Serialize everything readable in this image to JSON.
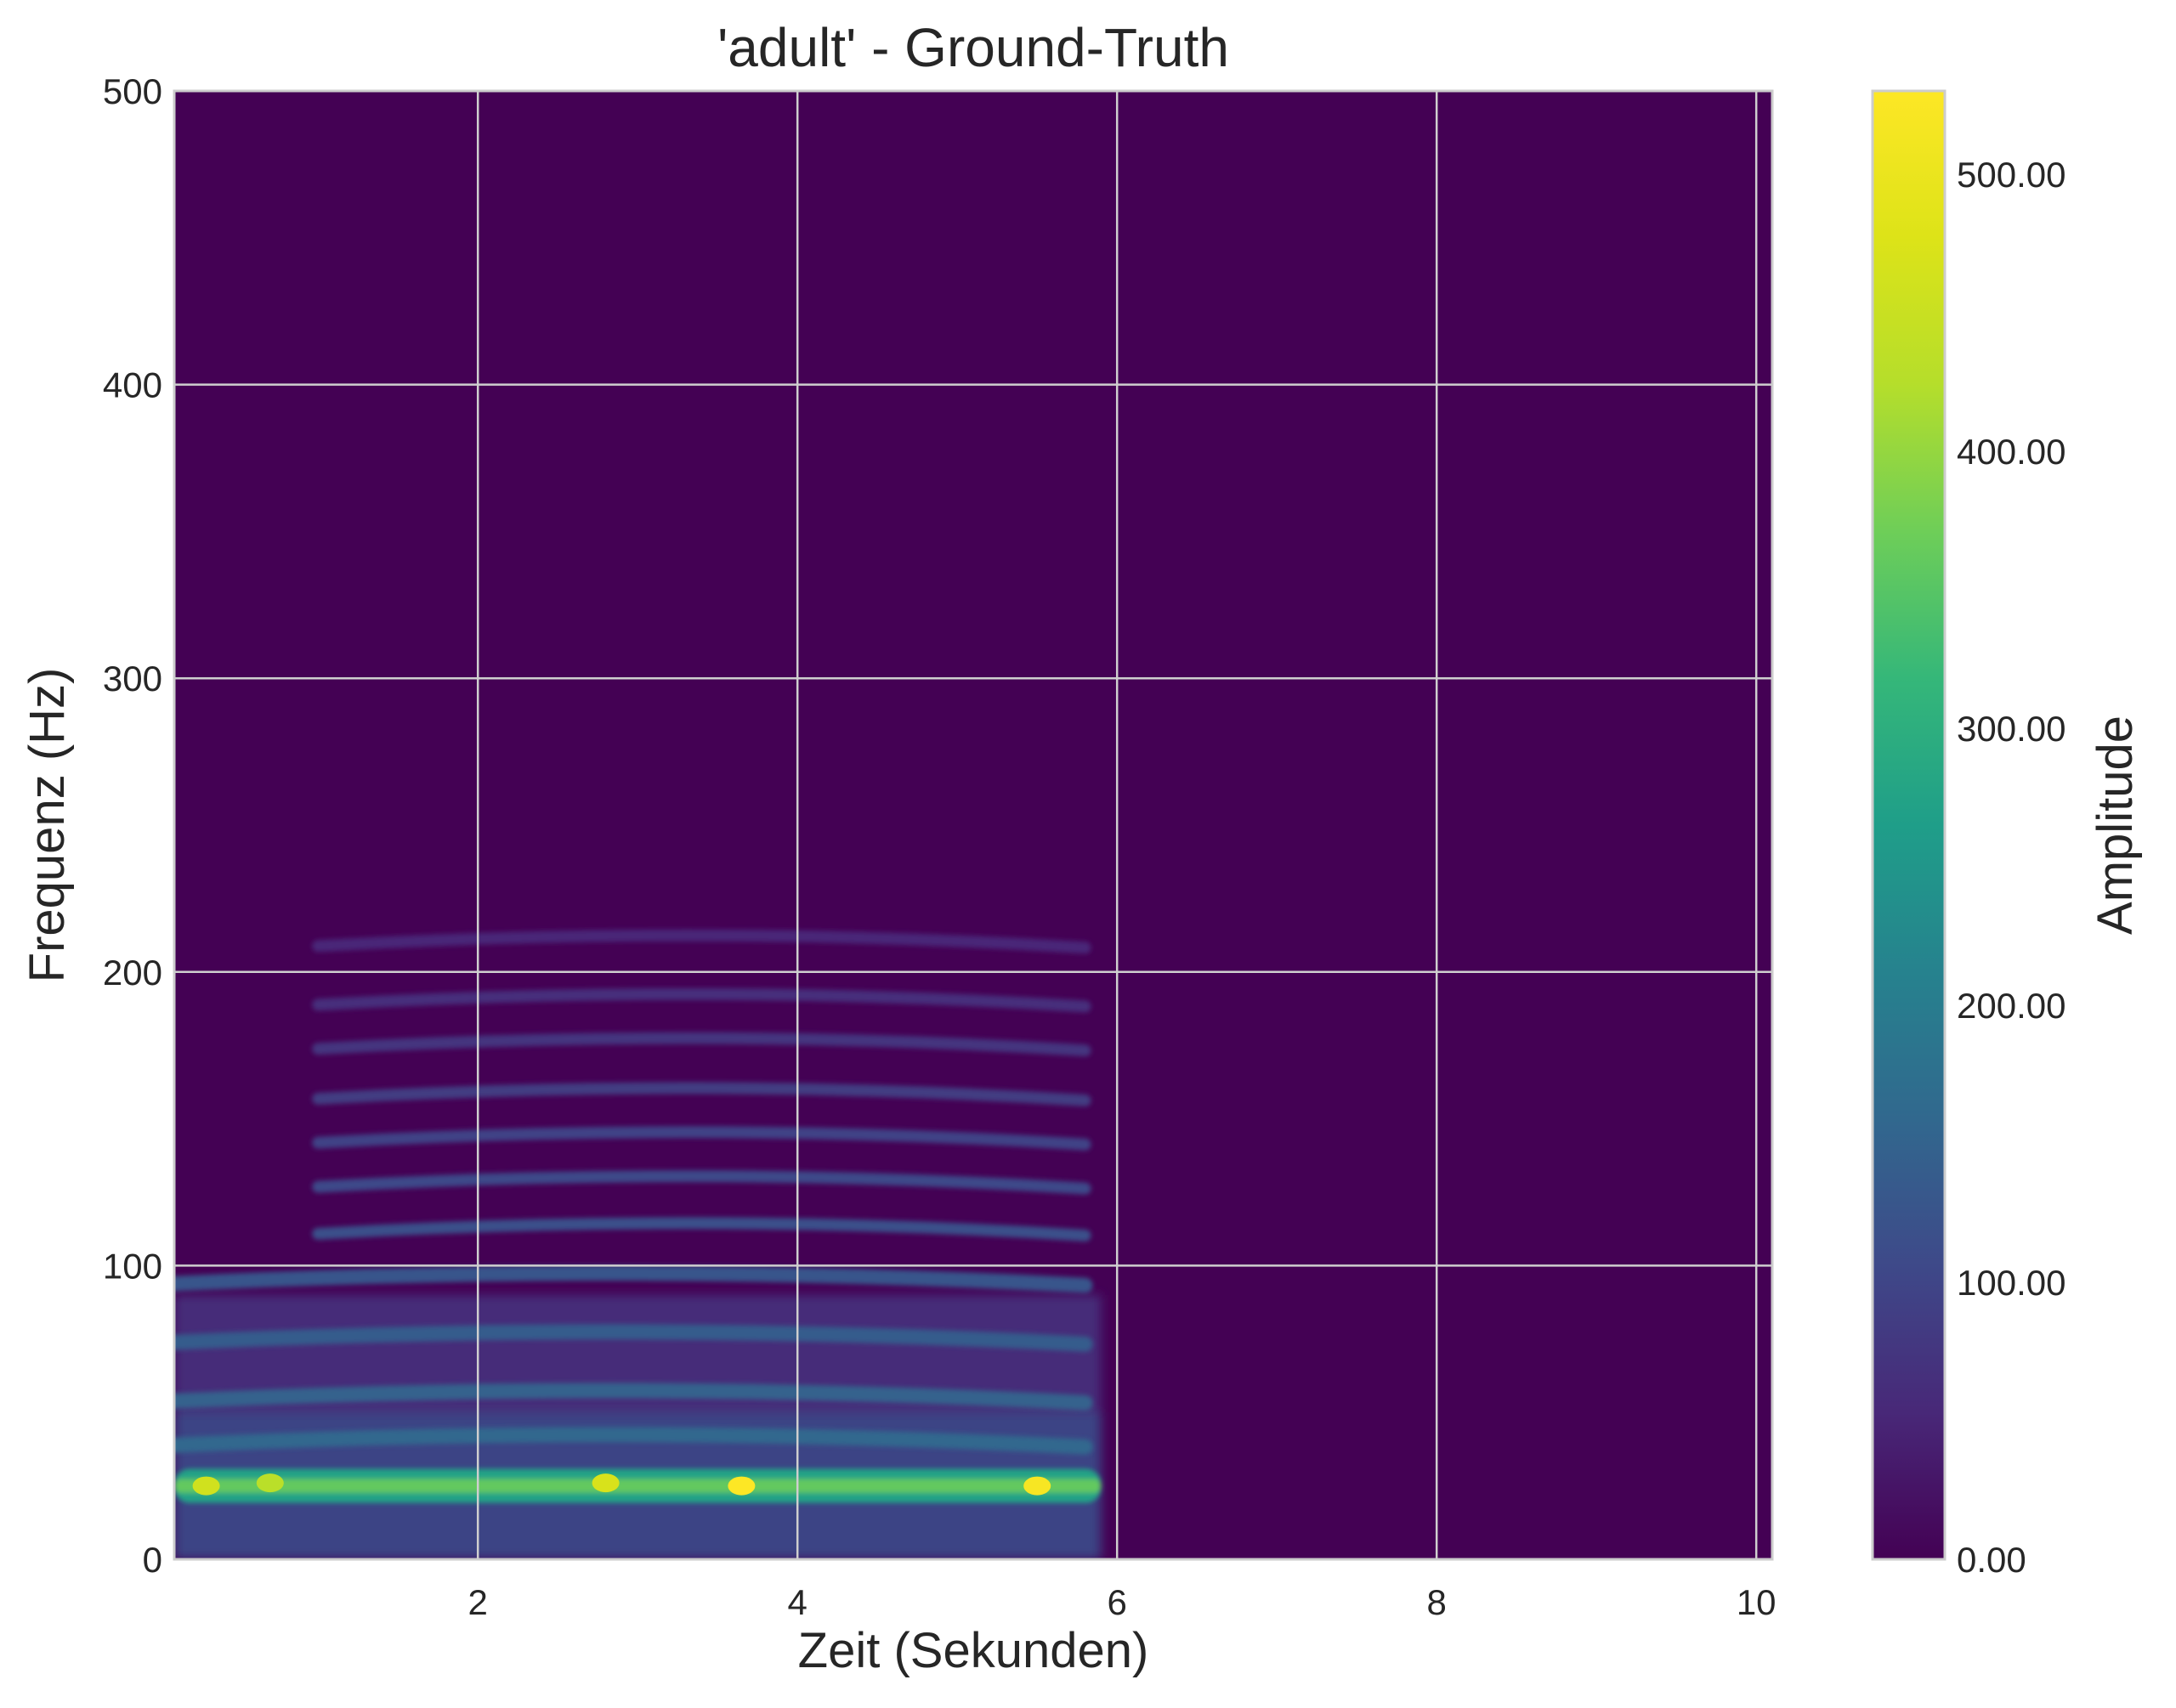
{
  "chart_data": {
    "type": "heatmap",
    "title": "'adult' - Ground-Truth",
    "xlabel": "Zeit (Sekunden)",
    "ylabel": "Frequenz (Hz)",
    "colorbar_label": "Amplitude",
    "colormap": "viridis",
    "xlim": [
      0.1,
      10.1
    ],
    "ylim": [
      0,
      500
    ],
    "x_ticks": [
      {
        "value": 2,
        "label": "2"
      },
      {
        "value": 4,
        "label": "4"
      },
      {
        "value": 6,
        "label": "6"
      },
      {
        "value": 8,
        "label": "8"
      },
      {
        "value": 10,
        "label": "10"
      }
    ],
    "y_ticks": [
      {
        "value": 0,
        "label": "0"
      },
      {
        "value": 100,
        "label": "100"
      },
      {
        "value": 200,
        "label": "200"
      },
      {
        "value": 300,
        "label": "300"
      },
      {
        "value": 400,
        "label": "400"
      },
      {
        "value": 500,
        "label": "500"
      }
    ],
    "colorbar_range": [
      0,
      530
    ],
    "colorbar_ticks": [
      {
        "value": 0,
        "label": "0.00"
      },
      {
        "value": 100,
        "label": "100.00"
      },
      {
        "value": 200,
        "label": "200.00"
      },
      {
        "value": 300,
        "label": "300.00"
      },
      {
        "value": 400,
        "label": "400.00"
      },
      {
        "value": 500,
        "label": "500.00"
      }
    ],
    "signal_time_range": [
      0.1,
      5.9
    ],
    "fundamental_band": {
      "frequency": 25,
      "peak_amplitude": 530
    },
    "harmonic_bands_hz": [
      40,
      55,
      75,
      95,
      112,
      128,
      143,
      158,
      175,
      190,
      210
    ],
    "hotspots": [
      {
        "time": 0.3,
        "frequency": 25,
        "amplitude": 460
      },
      {
        "time": 0.7,
        "frequency": 26,
        "amplitude": 430
      },
      {
        "time": 2.8,
        "frequency": 26,
        "amplitude": 470
      },
      {
        "time": 3.65,
        "frequency": 25,
        "amplitude": 530
      },
      {
        "time": 5.5,
        "frequency": 25,
        "amplitude": 520
      }
    ],
    "grid": true,
    "colors": {
      "background": "#440154",
      "axis_edge": "#cccccc",
      "grid": "#cfcfcf"
    }
  }
}
